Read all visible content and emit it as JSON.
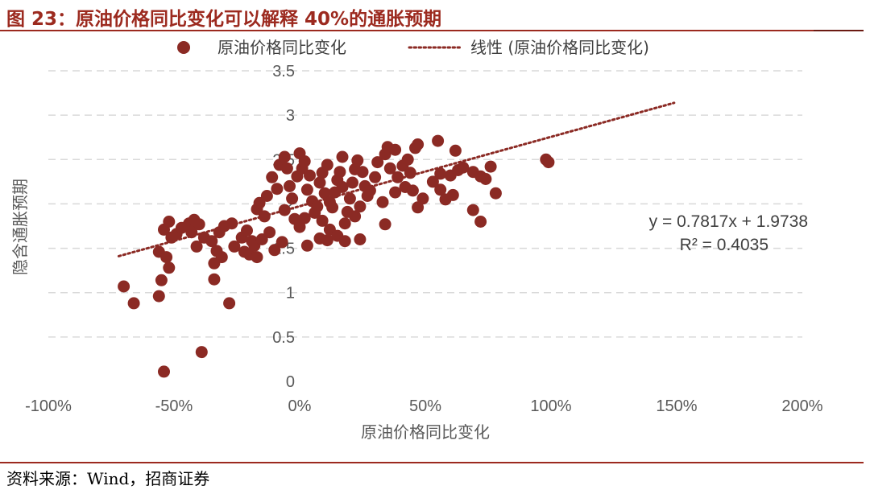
{
  "figure": {
    "title": "图 23：原油价格同比变化可以解释 40%的通胀预期",
    "source": "资料来源：Wind，招商证券",
    "accent_color": "#9c2a1f",
    "marker_color": "#8b2a24"
  },
  "chart_data": {
    "type": "scatter",
    "xlabel": "原油价格同比变化",
    "ylabel": "隐含通胀预期",
    "xlim": [
      -1.0,
      2.0
    ],
    "ylim": [
      0,
      3.5
    ],
    "x_ticks": [
      -1.0,
      -0.5,
      0,
      0.5,
      1.0,
      1.5,
      2.0
    ],
    "x_tick_labels": [
      "-100%",
      "-50%",
      "0%",
      "50%",
      "100%",
      "150%",
      "200%"
    ],
    "y_ticks": [
      0,
      0.5,
      1,
      1.5,
      2,
      2.5,
      3,
      3.5
    ],
    "y_tick_labels": [
      "0",
      "0.5",
      "1",
      "1.5",
      "2",
      "2.5",
      "3",
      "3.5"
    ],
    "grid": "horizontal dashed",
    "legend_position": "top",
    "legend": [
      "原油价格同比变化",
      "线性 (原油价格同比变化)"
    ],
    "trendline": {
      "label": "线性 (原油价格同比变化)",
      "slope": 0.7817,
      "intercept": 1.9738,
      "x_range": [
        -0.72,
        1.49
      ],
      "style": "dotted"
    },
    "annotations": [
      "y = 0.7817x + 1.9738",
      "R² = 0.4035"
    ],
    "series": [
      {
        "name": "原油价格同比变化",
        "points": [
          [
            -0.54,
            0.11
          ],
          [
            -0.39,
            0.33
          ],
          [
            -0.7,
            1.07
          ],
          [
            -0.66,
            0.88
          ],
          [
            -0.56,
            0.96
          ],
          [
            -0.55,
            1.14
          ],
          [
            -0.52,
            1.28
          ],
          [
            -0.28,
            0.88
          ],
          [
            -0.34,
            1.15
          ],
          [
            -0.56,
            1.46
          ],
          [
            -0.53,
            1.4
          ],
          [
            -0.54,
            1.71
          ],
          [
            -0.52,
            1.8
          ],
          [
            -0.51,
            1.62
          ],
          [
            -0.49,
            1.66
          ],
          [
            -0.47,
            1.73
          ],
          [
            -0.44,
            1.78
          ],
          [
            -0.42,
            1.82
          ],
          [
            -0.4,
            1.77
          ],
          [
            -0.43,
            1.68
          ],
          [
            -0.38,
            1.62
          ],
          [
            -0.35,
            1.58
          ],
          [
            -0.41,
            1.52
          ],
          [
            -0.32,
            1.68
          ],
          [
            -0.3,
            1.75
          ],
          [
            -0.27,
            1.78
          ],
          [
            -0.33,
            1.47
          ],
          [
            -0.31,
            1.4
          ],
          [
            -0.34,
            1.33
          ],
          [
            -0.26,
            1.52
          ],
          [
            -0.23,
            1.62
          ],
          [
            -0.21,
            1.7
          ],
          [
            -0.19,
            1.58
          ],
          [
            -0.22,
            1.46
          ],
          [
            -0.2,
            1.43
          ],
          [
            -0.18,
            1.53
          ],
          [
            -0.17,
            1.4
          ],
          [
            -0.15,
            1.6
          ],
          [
            -0.12,
            1.68
          ],
          [
            -0.14,
            1.86
          ],
          [
            -0.17,
            1.94
          ],
          [
            -0.1,
            1.48
          ],
          [
            -0.16,
            2.01
          ],
          [
            -0.13,
            2.09
          ],
          [
            -0.09,
            2.17
          ],
          [
            -0.11,
            2.3
          ],
          [
            -0.08,
            2.44
          ],
          [
            -0.06,
            2.53
          ],
          [
            -0.05,
            2.4
          ],
          [
            -0.04,
            2.2
          ],
          [
            -0.03,
            2.06
          ],
          [
            -0.06,
            1.93
          ],
          [
            -0.02,
            1.83
          ],
          [
            0.0,
            1.74
          ],
          [
            -0.01,
            2.31
          ],
          [
            0.01,
            2.4
          ],
          [
            0.02,
            2.48
          ],
          [
            0.04,
            2.32
          ],
          [
            0.03,
            2.16
          ],
          [
            0.05,
            2.03
          ],
          [
            0.0,
            2.57
          ],
          [
            -0.07,
            1.57
          ],
          [
            0.06,
            1.9
          ],
          [
            0.03,
            1.53
          ],
          [
            0.08,
            2.24
          ],
          [
            0.09,
            2.35
          ],
          [
            0.11,
            2.44
          ],
          [
            0.1,
            2.12
          ],
          [
            0.12,
            2.02
          ],
          [
            0.13,
            1.96
          ],
          [
            0.14,
            2.13
          ],
          [
            0.15,
            2.27
          ],
          [
            0.16,
            2.36
          ],
          [
            0.17,
            2.19
          ],
          [
            0.09,
            1.81
          ],
          [
            0.12,
            1.71
          ],
          [
            0.08,
            1.61
          ],
          [
            0.11,
            1.59
          ],
          [
            0.15,
            1.64
          ],
          [
            0.18,
            1.78
          ],
          [
            0.19,
            1.91
          ],
          [
            0.2,
            2.06
          ],
          [
            0.21,
            2.24
          ],
          [
            0.22,
            2.39
          ],
          [
            0.23,
            2.49
          ],
          [
            0.17,
            2.53
          ],
          [
            0.25,
            2.36
          ],
          [
            0.26,
            2.2
          ],
          [
            0.24,
            1.97
          ],
          [
            0.22,
            1.86
          ],
          [
            0.18,
            1.58
          ],
          [
            0.27,
            2.09
          ],
          [
            0.3,
            2.3
          ],
          [
            0.31,
            2.47
          ],
          [
            0.34,
            2.56
          ],
          [
            0.35,
            2.64
          ],
          [
            0.38,
            2.61
          ],
          [
            0.36,
            2.4
          ],
          [
            0.39,
            2.3
          ],
          [
            0.41,
            2.43
          ],
          [
            0.43,
            2.5
          ],
          [
            0.44,
            2.35
          ],
          [
            0.42,
            2.19
          ],
          [
            0.38,
            2.13
          ],
          [
            0.33,
            2.02
          ],
          [
            0.34,
            1.77
          ],
          [
            0.46,
            2.63
          ],
          [
            0.47,
            2.67
          ],
          [
            0.45,
            2.15
          ],
          [
            0.47,
            1.96
          ],
          [
            0.49,
            2.06
          ],
          [
            0.53,
            2.25
          ],
          [
            0.56,
            2.34
          ],
          [
            0.55,
            2.71
          ],
          [
            0.56,
            2.16
          ],
          [
            0.58,
            2.05
          ],
          [
            0.6,
            2.32
          ],
          [
            0.61,
            2.1
          ],
          [
            0.63,
            2.38
          ],
          [
            0.65,
            2.41
          ],
          [
            0.62,
            2.6
          ],
          [
            0.69,
            2.36
          ],
          [
            0.72,
            2.31
          ],
          [
            0.74,
            2.28
          ],
          [
            0.76,
            2.42
          ],
          [
            0.78,
            2.12
          ],
          [
            0.69,
            1.93
          ],
          [
            0.72,
            1.8
          ],
          [
            0.98,
            2.5
          ],
          [
            0.99,
            2.47
          ],
          [
            0.24,
            1.6
          ],
          [
            0.02,
            1.84
          ],
          [
            0.07,
            1.97
          ],
          [
            0.28,
            2.15
          ]
        ]
      }
    ]
  }
}
